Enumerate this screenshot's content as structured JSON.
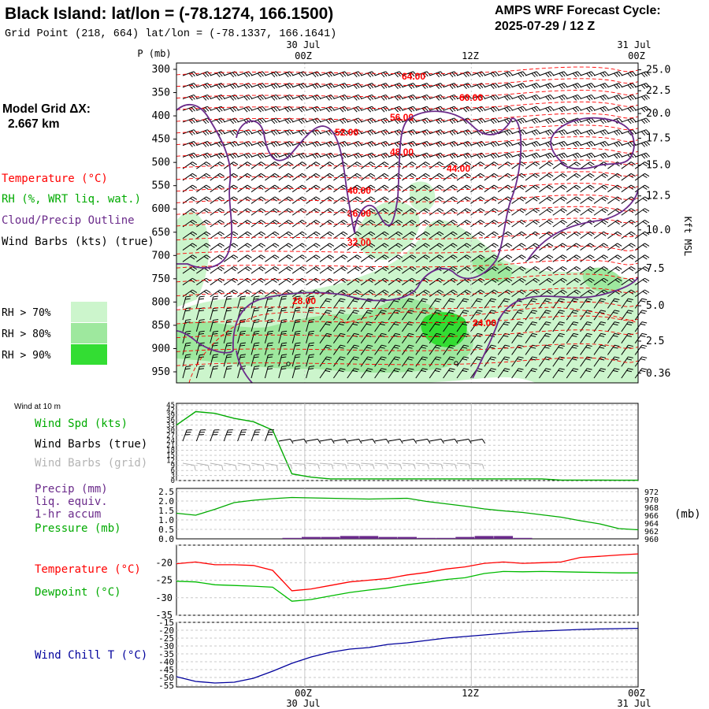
{
  "header": {
    "title": "Black Island:  lat/lon = (-78.1274, 166.1500)",
    "subtitle": "Grid Point (218, 664) lat/lon = (-78.1337, 166.1641)",
    "cycle_label": "AMPS WRF Forecast Cycle:",
    "cycle_value": "2025-07-29 / 12  Z",
    "model_grid_label": "Model Grid ΔX:",
    "model_grid_value": "2.667 km"
  },
  "time_axis": {
    "top_dates": [
      "30 Jul",
      "31 Jul"
    ],
    "bottom_dates": [
      "30 Jul",
      "31 Jul"
    ],
    "ticks": [
      "00Z",
      "12Z",
      "00Z"
    ]
  },
  "colors": {
    "temperature": "#ff0000",
    "rh_green": "#00bb00",
    "cloud_outline": "#6a2a8a",
    "wind_chill": "#00009c",
    "rh70": "#ccf5cc",
    "rh80": "#9ee89e",
    "rh90": "#33dd33"
  },
  "chart_data": [
    {
      "type": "heatmap",
      "panel": "cross-section",
      "ylabel": "P (mb)",
      "ylabel_right": "Kft MSL",
      "pressure_ticks": [
        300,
        350,
        400,
        450,
        500,
        550,
        600,
        650,
        700,
        750,
        800,
        850,
        900,
        950
      ],
      "height_ticks": [
        "25.0",
        "22.5",
        "20.0",
        "17.5",
        "15.0",
        "12.5",
        "10.0",
        "7.5",
        "5.0",
        "2.5",
        "0.36"
      ],
      "height_tick_pressures": [
        301,
        346,
        395,
        448,
        506,
        572,
        645,
        728,
        808,
        884,
        953
      ],
      "temperature_labels": [
        "64.00",
        "60.00",
        "56.00",
        "52.00",
        "48.00",
        "44.00",
        "40.00",
        "36.00",
        "32.00",
        "28.00",
        "24.00"
      ],
      "legend": [
        "Temperature (°C)",
        "RH (%, WRT liq. wat.)",
        "Cloud/Precip Outline",
        "Wind Barbs (kts) (true)"
      ],
      "rh_legend": [
        "RH > 70%",
        "RH > 80%",
        "RH > 90%"
      ]
    },
    {
      "type": "line",
      "panel": "surface-wind",
      "title": "Wind at 10 m",
      "legend": [
        "Wind Spd (kts)",
        "Wind Barbs (true)",
        "Wind Barbs (grid)"
      ],
      "ylim": [
        0,
        45
      ],
      "yticks": [
        "45",
        "42",
        "39",
        "36",
        "33",
        "30",
        "27",
        "24",
        "21",
        "18",
        "15",
        "12",
        "9",
        "6",
        "3",
        "0"
      ],
      "series": [
        {
          "name": "Wind Spd (kts)",
          "x": [
            0,
            1,
            2,
            3,
            4,
            5,
            6,
            7,
            8,
            9,
            10,
            11,
            12,
            13,
            14,
            15,
            16,
            17,
            18,
            19,
            20,
            21,
            22,
            23,
            24
          ],
          "values": [
            33,
            41,
            40,
            37,
            35,
            30,
            4,
            2,
            1,
            1,
            1,
            1,
            1,
            1,
            1,
            1,
            1,
            1,
            1,
            1,
            0.3,
            0.3,
            0.3,
            0.2,
            0.2
          ]
        }
      ]
    },
    {
      "type": "bar",
      "panel": "precip-pressure",
      "legend": [
        "Precip (mm)",
        "liq. equiv.",
        "1-hr accum",
        "Pressure (mb)"
      ],
      "ylim": [
        0,
        2.5
      ],
      "yticks": [
        "2.5",
        "2.0",
        "1.5",
        "1.0",
        "0.5",
        "0.0"
      ],
      "ylim_right": [
        960,
        972
      ],
      "yticks_right": [
        "972",
        "970",
        "968",
        "966",
        "964",
        "962",
        "960"
      ],
      "unit_right": "(mb)",
      "series": [
        {
          "name": "Precip (mm)",
          "x": [
            6,
            7,
            8,
            9,
            10,
            11,
            12,
            13,
            14,
            15,
            16,
            17,
            18
          ],
          "values": [
            0.05,
            0.1,
            0.1,
            0.15,
            0.15,
            0.1,
            0.1,
            0.05,
            0.05,
            0.1,
            0.15,
            0.15,
            0.05
          ]
        },
        {
          "name": "Pressure (mb)",
          "x": [
            0,
            1,
            2,
            3,
            4,
            5,
            6,
            7,
            8,
            9,
            10,
            11,
            12,
            13,
            14,
            15,
            16,
            17,
            18,
            19,
            20,
            21,
            22,
            23,
            24
          ],
          "values": [
            966.5,
            966,
            967.5,
            969.2,
            969.8,
            970.2,
            970.5,
            970.4,
            970.3,
            970.2,
            970.1,
            970.2,
            970.3,
            969.5,
            968.9,
            968.3,
            967.6,
            967.1,
            966.7,
            966.1,
            965.5,
            964.6,
            963.8,
            962.6,
            962.3
          ]
        }
      ]
    },
    {
      "type": "line",
      "panel": "temperature",
      "legend": [
        "Temperature (°C)",
        "Dewpoint (°C)"
      ],
      "ylim": [
        -35,
        -15
      ],
      "yticks": [
        "-20",
        "-25",
        "-30",
        "-35"
      ],
      "series": [
        {
          "name": "Temperature (°C)",
          "x": [
            0,
            1,
            2,
            3,
            4,
            5,
            6,
            7,
            8,
            9,
            10,
            11,
            12,
            13,
            14,
            15,
            16,
            17,
            18,
            19,
            20,
            21,
            22,
            23,
            24
          ],
          "values": [
            -20.3,
            -19.8,
            -20.6,
            -20.6,
            -20.8,
            -22.2,
            -28,
            -27.5,
            -26.5,
            -25.5,
            -25,
            -24.5,
            -23.5,
            -22.8,
            -21.8,
            -21.2,
            -20.2,
            -19.8,
            -20.2,
            -20,
            -19.8,
            -18.5,
            -18.2,
            -17.8,
            -17.5
          ]
        },
        {
          "name": "Dewpoint (°C)",
          "x": [
            0,
            1,
            2,
            3,
            4,
            5,
            6,
            7,
            8,
            9,
            10,
            11,
            12,
            13,
            14,
            15,
            16,
            17,
            18,
            19,
            20,
            21,
            22,
            23,
            24
          ],
          "values": [
            -25.3,
            -25.5,
            -26.3,
            -26.5,
            -26.7,
            -27,
            -31,
            -30.5,
            -29.5,
            -28.5,
            -27.8,
            -27.2,
            -26.3,
            -25.6,
            -24.8,
            -24.3,
            -23.1,
            -22.5,
            -22.6,
            -22.5,
            -22.6,
            -22.7,
            -22.8,
            -22.9,
            -22.9
          ]
        }
      ]
    },
    {
      "type": "line",
      "panel": "wind-chill",
      "legend": [
        "Wind Chill T (°C)"
      ],
      "ylim": [
        -55,
        -15
      ],
      "yticks": [
        "-15",
        "-20",
        "-25",
        "-30",
        "-35",
        "-40",
        "-45",
        "-50",
        "-55"
      ],
      "series": [
        {
          "name": "Wind Chill T (°C)",
          "x": [
            0,
            1,
            2,
            3,
            4,
            5,
            6,
            7,
            8,
            9,
            10,
            11,
            12,
            13,
            14,
            15,
            16,
            17,
            18,
            19,
            20,
            21,
            22,
            23,
            24
          ],
          "values": [
            -49.5,
            -52.5,
            -53.5,
            -53,
            -50.5,
            -46,
            -41,
            -37,
            -34,
            -32,
            -31,
            -29,
            -28,
            -26.5,
            -25,
            -24,
            -23,
            -22,
            -21,
            -20.5,
            -20,
            -19.5,
            -19.2,
            -19,
            -18.8
          ]
        }
      ]
    }
  ]
}
